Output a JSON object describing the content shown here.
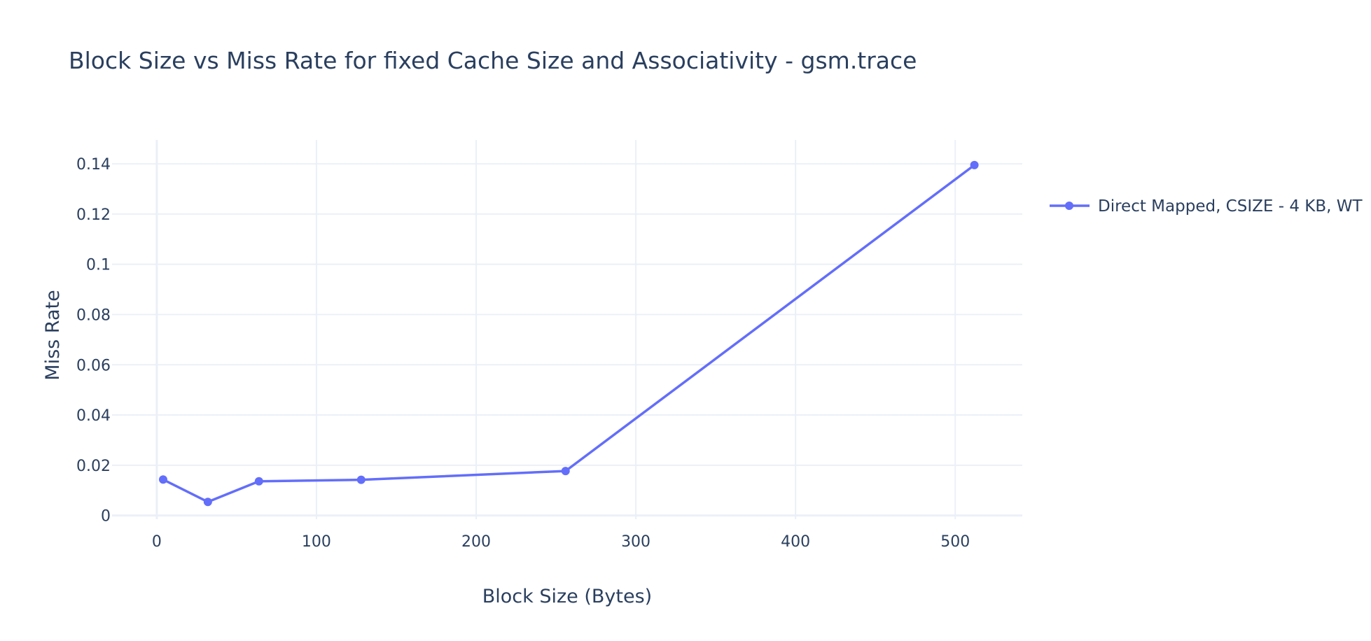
{
  "chart_data": {
    "type": "line",
    "title": "Block Size vs Miss Rate for fixed Cache Size and Associativity - gsm.trace",
    "xlabel": "Block Size (Bytes)",
    "ylabel": "Miss Rate",
    "xlim": [
      -28,
      542
    ],
    "ylim": [
      -0.0015,
      0.1495
    ],
    "xticks": [
      0,
      100,
      200,
      300,
      400,
      500
    ],
    "xtick_labels": [
      "0",
      "100",
      "200",
      "300",
      "400",
      "500"
    ],
    "yticks": [
      0,
      0.02,
      0.04,
      0.06,
      0.08,
      0.1,
      0.12,
      0.14
    ],
    "ytick_labels": [
      "0",
      "0.02",
      "0.04",
      "0.06",
      "0.08",
      "0.1",
      "0.12",
      "0.14"
    ],
    "grid": true,
    "legend_position": "top-right",
    "series": [
      {
        "name": "Direct Mapped, CSIZE - 4 KB, WT",
        "color": "#636efa",
        "x": [
          4,
          32,
          64,
          128,
          256,
          512
        ],
        "y": [
          0.0143,
          0.0054,
          0.0136,
          0.0142,
          0.0177,
          0.1395
        ]
      }
    ]
  }
}
